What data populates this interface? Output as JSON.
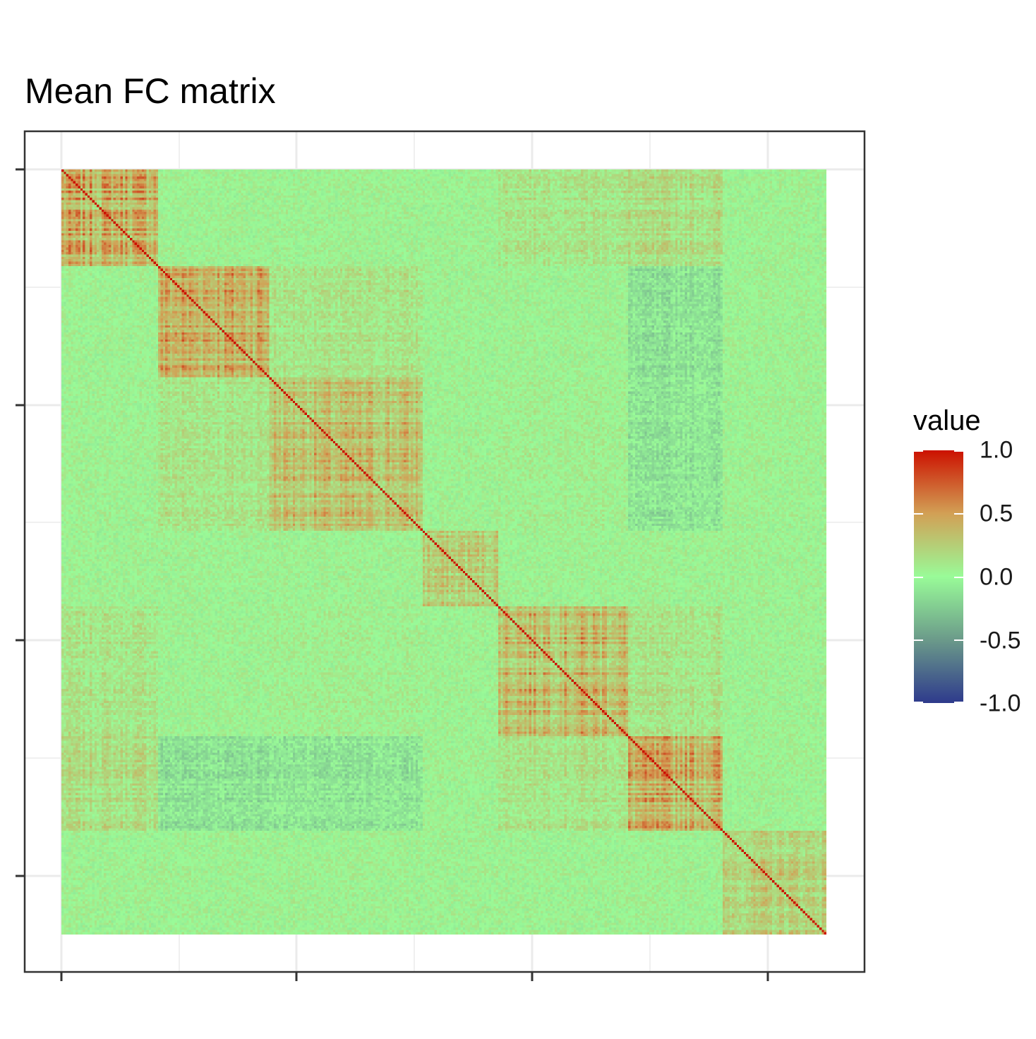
{
  "chart_data": {
    "type": "heatmap",
    "title": "Mean FC matrix",
    "xlabel": "",
    "ylabel": "",
    "tick_labels_shown": false,
    "matrix_size": 324,
    "value_range": [
      -1.0,
      1.0
    ],
    "diagonal_value": 1.0,
    "background_value": 0.03,
    "blocks": [
      {
        "start": 0,
        "end": 41,
        "within_mean": 0.4
      },
      {
        "start": 41,
        "end": 88,
        "within_mean": 0.42
      },
      {
        "start": 88,
        "end": 153,
        "within_mean": 0.3
      },
      {
        "start": 153,
        "end": 185,
        "within_mean": 0.25
      },
      {
        "start": 185,
        "end": 240,
        "within_mean": 0.36
      },
      {
        "start": 240,
        "end": 280,
        "within_mean": 0.38
      },
      {
        "start": 280,
        "end": 324,
        "within_mean": 0.22
      }
    ],
    "cross_block_means": [
      {
        "a": 0,
        "b": 4,
        "mean": 0.12
      },
      {
        "a": 0,
        "b": 5,
        "mean": 0.15
      },
      {
        "a": 1,
        "b": 5,
        "mean": -0.12
      },
      {
        "a": 1,
        "b": 2,
        "mean": 0.12
      },
      {
        "a": 2,
        "b": 5,
        "mean": -0.1
      },
      {
        "a": 4,
        "b": 5,
        "mean": 0.12
      },
      {
        "a": 2,
        "b": 4,
        "mean": 0.05
      }
    ],
    "grid": true,
    "panel_border": true,
    "legend": {
      "title": "value",
      "position": "right",
      "colors": [
        "#2e3a8c",
        "#6b9a8a",
        "#99fb98",
        "#d2a055",
        "#cc1100"
      ],
      "stops": [
        -1.0,
        -0.5,
        0.0,
        0.5,
        1.0
      ],
      "labels": [
        "1.0",
        "0.5",
        "0.0",
        "-0.5",
        "-1.0"
      ]
    }
  }
}
